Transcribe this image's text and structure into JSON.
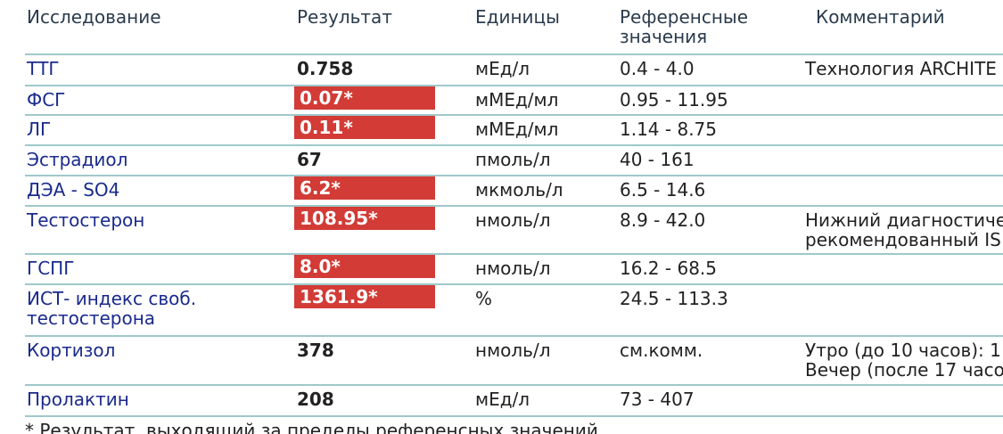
{
  "header": {
    "columns": [
      "Исследование",
      "Результат",
      "Единицы",
      [
        "Референсные",
        "значения"
      ],
      "Комментарий"
    ]
  },
  "table": {
    "rows": [
      {
        "name": "ТТГ",
        "result": "0.758",
        "flagged": false,
        "units": "мЕд/л",
        "reference": "0.4 - 4.0",
        "comment": [
          "Технология ARCHITE"
        ]
      },
      {
        "name": "ФСГ",
        "result": "0.07*",
        "flagged": true,
        "units": "мМЕд/мл",
        "reference": "0.95 - 11.95",
        "comment": []
      },
      {
        "name": "ЛГ",
        "result": "0.11*",
        "flagged": true,
        "units": "мМЕд/мл",
        "reference": "1.14 - 8.75",
        "comment": []
      },
      {
        "name": "Эстрадиол",
        "result": "67",
        "flagged": false,
        "units": "пмоль/л",
        "reference": "40 - 161",
        "comment": []
      },
      {
        "name": "ДЭА - SO4",
        "result": "6.2*",
        "flagged": true,
        "units": "мкмоль/л",
        "reference": "6.5 - 14.6",
        "comment": []
      },
      {
        "name": "Тестостерон",
        "result": "108.95*",
        "flagged": true,
        "units": "нмоль/л",
        "reference": "8.9 - 42.0",
        "comment": [
          "Нижний диагностиче",
          "рекомендованный IS"
        ]
      },
      {
        "name": "ГСПГ",
        "result": "8.0*",
        "flagged": true,
        "units": "нмоль/л",
        "reference": "16.2 - 68.5",
        "comment": []
      },
      {
        "name": [
          "ИСТ- индекс своб.",
          "тестостерона"
        ],
        "result": "1361.9*",
        "flagged": true,
        "units": "%",
        "reference": "24.5 - 113.3",
        "comment": []
      },
      {
        "name": "Кортизол",
        "result": "378",
        "flagged": false,
        "units": "нмоль/л",
        "reference": "см.комм.",
        "comment": [
          "Утро (до 10 часов): 1",
          "Вечер (после 17 часо"
        ]
      },
      {
        "name": "Пролактин",
        "result": "208",
        "flagged": false,
        "units": "мЕд/л",
        "reference": "73 - 407",
        "comment": []
      }
    ]
  },
  "footnote": "* Результат, выходящий за пределы референсных значений"
}
